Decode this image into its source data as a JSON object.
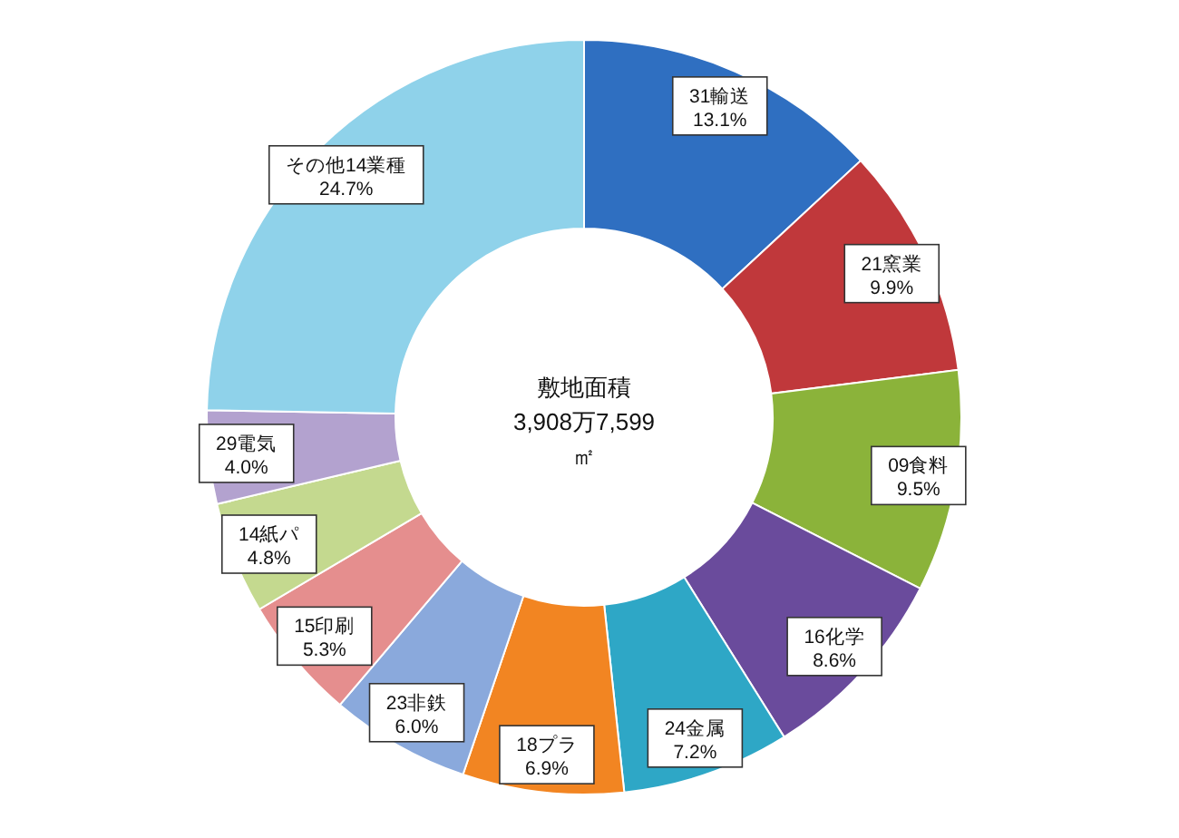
{
  "chart_data": {
    "type": "donut",
    "annotations": [
      "敷地面積",
      "3,908万7,599",
      "㎡"
    ],
    "categories": [
      "31輸送",
      "21窯業",
      "09食料",
      "16化学",
      "24金属",
      "18プラ",
      "23非鉄",
      "15印刷",
      "14紙パ",
      "29電気",
      "その他14業種"
    ],
    "values": [
      13.1,
      9.9,
      9.5,
      8.6,
      7.2,
      6.9,
      6.0,
      5.3,
      4.8,
      4.0,
      24.7
    ],
    "colors": [
      "#2f6fc1",
      "#c0383b",
      "#8bb33a",
      "#6a4b9c",
      "#2ea7c6",
      "#f28522",
      "#8aa9dc",
      "#e58e8e",
      "#c4d98f",
      "#b3a2cf",
      "#8fd2ea"
    ],
    "value_labels": [
      "13.1%",
      "9.9%",
      "9.5%",
      "8.6%",
      "7.2%",
      "6.9%",
      "6.0%",
      "5.3%",
      "4.8%",
      "4.0%",
      "24.7%"
    ]
  }
}
